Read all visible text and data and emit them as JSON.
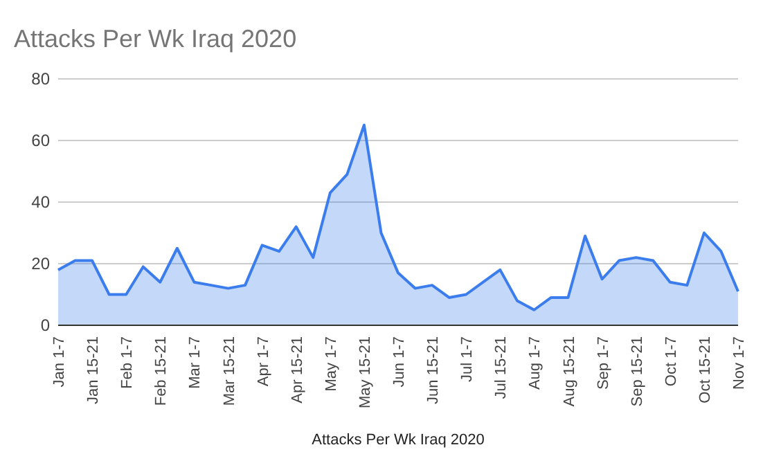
{
  "chart_data": {
    "type": "area",
    "title": "Attacks Per Wk Iraq 2020",
    "xlabel": "Attacks Per Wk Iraq 2020",
    "categories": [
      "Jan 1-7",
      null,
      "Jan 15-21",
      null,
      "Feb 1-7",
      null,
      "Feb 15-21",
      null,
      "Mar 1-7",
      null,
      "Mar 15-21",
      null,
      "Apr 1-7",
      null,
      "Apr 15-21",
      null,
      "May 1-7",
      null,
      "May 15-21",
      null,
      "Jun 1-7",
      null,
      "Jun 15-21",
      null,
      "Jul 1-7",
      null,
      "Jul 15-21",
      null,
      "Aug 1-7",
      null,
      "Aug 15-21",
      null,
      "Sep 1-7",
      null,
      "Sep 15-21",
      null,
      "Oct 1-7",
      null,
      "Oct 15-21",
      null,
      "Nov 1-7"
    ],
    "series": [
      {
        "color": "#3b7ded",
        "values": [
          18,
          21,
          21,
          10,
          10,
          19,
          14,
          25,
          14,
          13,
          12,
          13,
          26,
          24,
          32,
          22,
          43,
          49,
          65,
          30,
          17,
          12,
          13,
          9,
          10,
          14,
          18,
          8,
          5,
          9,
          9,
          29,
          15,
          21,
          22,
          21,
          14,
          13,
          30,
          24,
          11
        ]
      }
    ],
    "ylim": [
      0,
      80
    ],
    "yticks": [
      0,
      20,
      40,
      60,
      80
    ],
    "grid": "y"
  }
}
